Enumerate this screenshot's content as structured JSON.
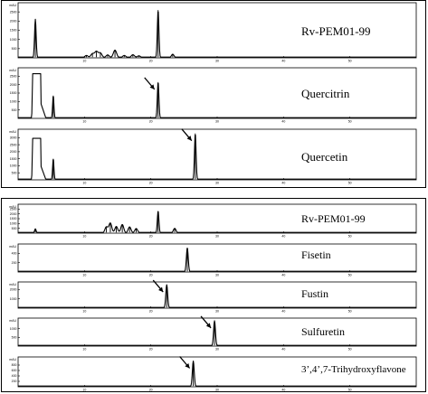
{
  "chart_data": [
    {
      "type": "line",
      "group": "top",
      "xlim": [
        0,
        60
      ],
      "x_ticks": [
        "10",
        "20",
        "30",
        "40",
        "50"
      ],
      "panels": [
        {
          "label": "Rv-PEM01-99",
          "y_unit": "mAU",
          "y_ticks": [
            "500",
            "1000",
            "1500",
            "2000",
            "2500"
          ],
          "ylim": [
            0,
            3000
          ],
          "peaks": [
            {
              "rt": 2.6,
              "height": 2100,
              "width": 0.12
            },
            {
              "rt": 10.3,
              "height": 130,
              "width": 0.25
            },
            {
              "rt": 11.2,
              "height": 220,
              "width": 0.25
            },
            {
              "rt": 11.8,
              "height": 340,
              "width": 0.25
            },
            {
              "rt": 12.4,
              "height": 260,
              "width": 0.25
            },
            {
              "rt": 13.5,
              "height": 160,
              "width": 0.25
            },
            {
              "rt": 14.6,
              "height": 420,
              "width": 0.25
            },
            {
              "rt": 16.0,
              "height": 130,
              "width": 0.25
            },
            {
              "rt": 17.3,
              "height": 170,
              "width": 0.25
            },
            {
              "rt": 18.2,
              "height": 110,
              "width": 0.25
            },
            {
              "rt": 21.1,
              "height": 2600,
              "width": 0.12
            },
            {
              "rt": 23.3,
              "height": 200,
              "width": 0.2
            }
          ]
        },
        {
          "label": "Quercitrin",
          "y_unit": "mAU",
          "y_ticks": [
            "500",
            "1000",
            "1500",
            "2000",
            "2500"
          ],
          "ylim": [
            0,
            3000
          ],
          "arrow": true,
          "arrow_target_rt": 21.1,
          "plateau": {
            "start": 2.2,
            "end": 3.4,
            "height": 2650
          },
          "peaks": [
            {
              "rt": 5.3,
              "height": 1350,
              "width": 0.1
            },
            {
              "rt": 21.1,
              "height": 2150,
              "width": 0.12
            }
          ]
        },
        {
          "label": "Quercetin",
          "y_unit": "mAU",
          "y_ticks": [
            "500",
            "1000",
            "1500",
            "2000",
            "2500",
            "3000"
          ],
          "ylim": [
            0,
            3600
          ],
          "arrow": true,
          "arrow_target_rt": 26.7,
          "plateau": {
            "start": 2.2,
            "end": 3.4,
            "height": 2950
          },
          "peaks": [
            {
              "rt": 5.3,
              "height": 1500,
              "width": 0.1
            },
            {
              "rt": 26.7,
              "height": 3300,
              "width": 0.12
            }
          ]
        }
      ]
    },
    {
      "type": "line",
      "group": "bottom",
      "xlim": [
        0,
        60
      ],
      "x_ticks": [
        "10",
        "20",
        "30",
        "40",
        "50"
      ],
      "panels": [
        {
          "label": "Rv-PEM01-99",
          "y_unit": "mAU",
          "y_ticks": [
            "500",
            "1000",
            "1500",
            "2000",
            "2500"
          ],
          "ylim": [
            0,
            3000
          ],
          "peaks": [
            {
              "rt": 2.6,
              "height": 450,
              "width": 0.12
            },
            {
              "rt": 13.3,
              "height": 650,
              "width": 0.22
            },
            {
              "rt": 13.9,
              "height": 1050,
              "width": 0.22
            },
            {
              "rt": 14.8,
              "height": 700,
              "width": 0.22
            },
            {
              "rt": 15.7,
              "height": 900,
              "width": 0.22
            },
            {
              "rt": 16.8,
              "height": 650,
              "width": 0.22
            },
            {
              "rt": 17.8,
              "height": 480,
              "width": 0.22
            },
            {
              "rt": 21.1,
              "height": 2300,
              "width": 0.12
            },
            {
              "rt": 23.6,
              "height": 500,
              "width": 0.2
            }
          ]
        },
        {
          "label": "Fisetin",
          "y_unit": "mAU",
          "y_ticks": [
            "200",
            "400"
          ],
          "ylim": [
            0,
            600
          ],
          "arrow": false,
          "peaks": [
            {
              "rt": 25.5,
              "height": 520,
              "width": 0.14
            }
          ]
        },
        {
          "label": "Fustin",
          "y_unit": "mAU",
          "y_ticks": [
            "1000",
            "2000"
          ],
          "ylim": [
            0,
            2800
          ],
          "arrow": true,
          "arrow_target_rt": 22.4,
          "peaks": [
            {
              "rt": 22.4,
              "height": 2500,
              "width": 0.14
            }
          ]
        },
        {
          "label": "Sulfuretin",
          "y_unit": "mAU",
          "y_ticks": [
            "500",
            "1000"
          ],
          "ylim": [
            0,
            1600
          ],
          "arrow": true,
          "arrow_target_rt": 29.6,
          "peaks": [
            {
              "rt": 29.6,
              "height": 1450,
              "width": 0.14
            }
          ]
        },
        {
          "label": "3’,4’,7-Trihydroxyflavone",
          "y_unit": "mAU",
          "y_ticks": [
            "200",
            "400",
            "600",
            "800"
          ],
          "ylim": [
            0,
            1100
          ],
          "arrow": true,
          "arrow_target_rt": 26.4,
          "peaks": [
            {
              "rt": 26.4,
              "height": 950,
              "width": 0.14
            }
          ]
        }
      ]
    }
  ]
}
